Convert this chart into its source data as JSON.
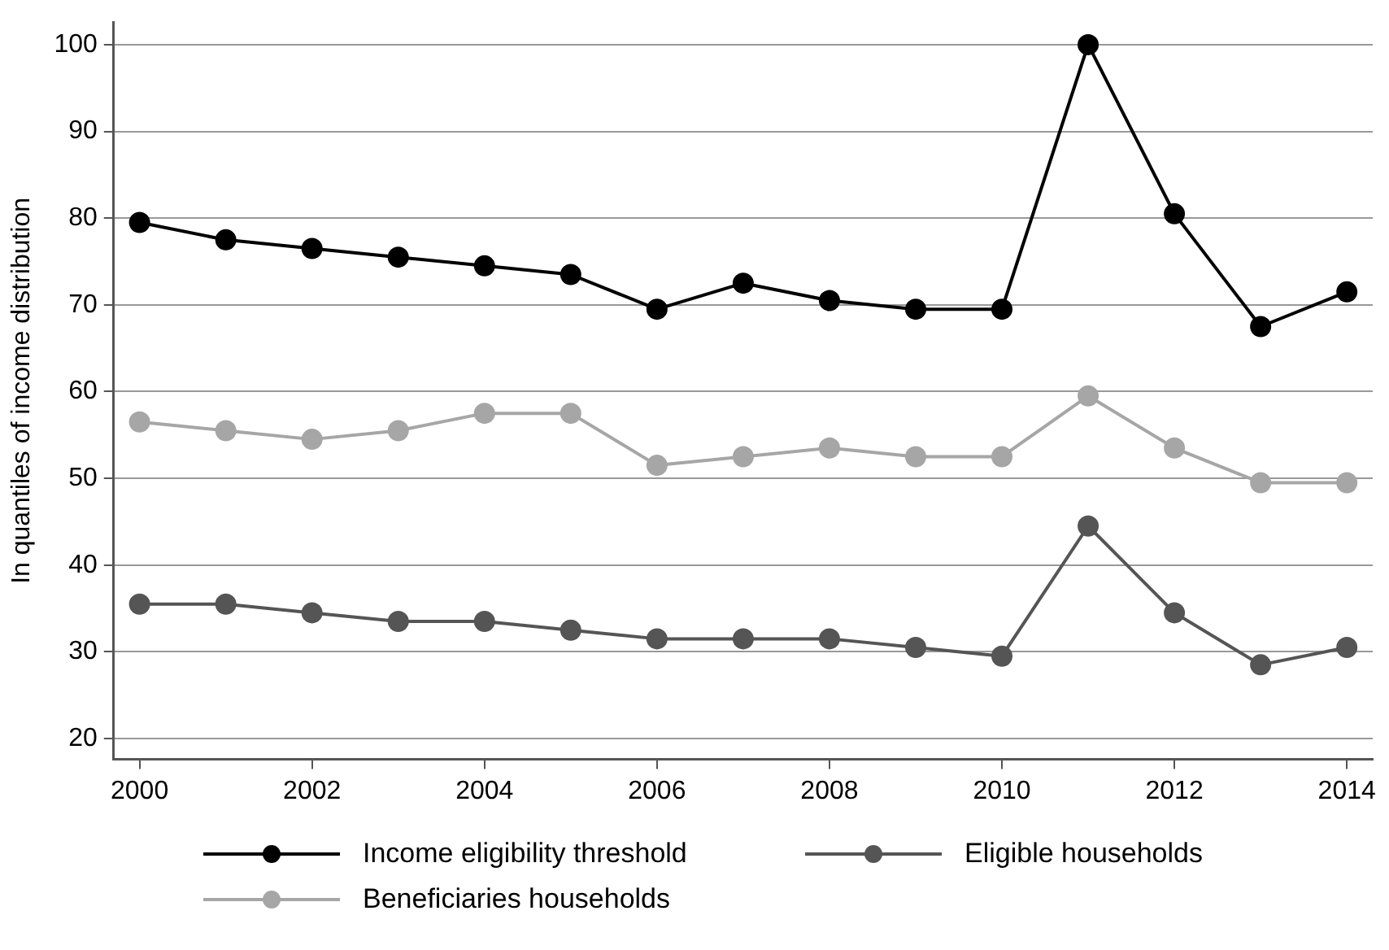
{
  "chart_data": {
    "type": "line",
    "ylabel": "In quantiles of income distribution",
    "x": [
      2000,
      2001,
      2002,
      2003,
      2004,
      2005,
      2006,
      2007,
      2008,
      2009,
      2010,
      2011,
      2012,
      2013,
      2014
    ],
    "series": [
      {
        "name": "Income eligibility threshold",
        "color": "#000000",
        "values": [
          79.5,
          77.5,
          76.5,
          75.5,
          74.5,
          73.5,
          69.5,
          72.5,
          70.5,
          69.5,
          69.5,
          100,
          80.5,
          67.5,
          71.5
        ]
      },
      {
        "name": "Eligible households",
        "color": "#555555",
        "values": [
          35.5,
          35.5,
          34.5,
          33.5,
          33.5,
          32.5,
          31.5,
          31.5,
          31.5,
          30.5,
          29.5,
          44.5,
          34.5,
          28.5,
          30.5
        ]
      },
      {
        "name": "Beneficiaries households",
        "color": "#a6a6a6",
        "values": [
          56.5,
          55.5,
          54.5,
          55.5,
          57.5,
          57.5,
          51.5,
          52.5,
          53.5,
          52.5,
          52.5,
          59.5,
          53.5,
          49.5,
          49.5
        ]
      }
    ],
    "xlim": [
      1999.7,
      2014.3
    ],
    "xticks": [
      2000,
      2002,
      2004,
      2006,
      2008,
      2010,
      2012,
      2014
    ],
    "ylim": [
      17.6,
      102.6
    ],
    "yticks": [
      20,
      30,
      40,
      50,
      60,
      70,
      80,
      90,
      100
    ],
    "grid": "y",
    "legend": "bottom",
    "marker": "circle",
    "line_style": "solid"
  }
}
